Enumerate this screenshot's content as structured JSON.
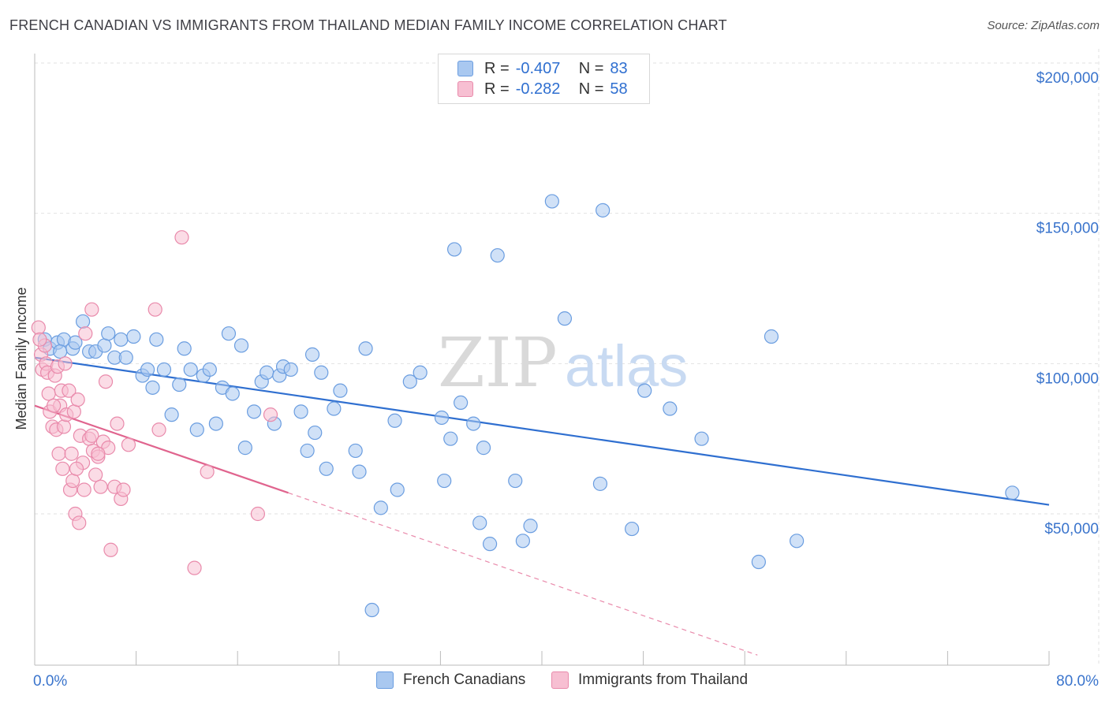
{
  "title": "FRENCH CANADIAN VS IMMIGRANTS FROM THAILAND MEDIAN FAMILY INCOME CORRELATION CHART",
  "source": "Source: ZipAtlas.com",
  "watermark": {
    "zip": "ZIP",
    "atlas": "atlas"
  },
  "legend": {
    "rows": [
      {
        "r_label": "R =",
        "r_value": "-0.407",
        "n_label": "N =",
        "n_value": "83",
        "color": "#a9c8f0",
        "stroke": "#6a9de0"
      },
      {
        "r_label": "R =",
        "r_value": "-0.282",
        "n_label": "N =",
        "n_value": "58",
        "color": "#f7bfd2",
        "stroke": "#e98aab"
      }
    ]
  },
  "bottom_legend": {
    "series1": "French Canadians",
    "series2": "Immigrants from Thailand"
  },
  "chart_data": {
    "type": "scatter",
    "title": "FRENCH CANADIAN VS IMMIGRANTS FROM THAILAND MEDIAN FAMILY INCOME CORRELATION CHART",
    "xlabel": "",
    "ylabel": "Median Family Income",
    "xlim": [
      0,
      80
    ],
    "ylim": [
      0,
      210000
    ],
    "x_tick_labels": [
      "0.0%",
      "80.0%"
    ],
    "y_ticks": [
      50000,
      100000,
      150000,
      200000
    ],
    "y_tick_labels": [
      "$50,000",
      "$100,000",
      "$150,000",
      "$200,000"
    ],
    "grid": true,
    "legend_position": "top-center",
    "series": [
      {
        "name": "French Canadians",
        "color": "#6a9de0",
        "fill": "#a9c8f0",
        "trend": {
          "x": [
            0,
            80
          ],
          "y": [
            102000,
            53000
          ],
          "style": "solid"
        },
        "points": [
          [
            0.8,
            108000
          ],
          [
            1.2,
            105000
          ],
          [
            1.8,
            107000
          ],
          [
            2.3,
            108000
          ],
          [
            3.0,
            105000
          ],
          [
            3.2,
            107000
          ],
          [
            3.8,
            114000
          ],
          [
            4.3,
            104000
          ],
          [
            4.8,
            104000
          ],
          [
            5.5,
            106000
          ],
          [
            5.8,
            110000
          ],
          [
            6.3,
            102000
          ],
          [
            6.8,
            108000
          ],
          [
            7.2,
            102000
          ],
          [
            7.8,
            109000
          ],
          [
            8.5,
            96000
          ],
          [
            8.9,
            98000
          ],
          [
            9.3,
            92000
          ],
          [
            9.6,
            108000
          ],
          [
            10.2,
            98000
          ],
          [
            10.8,
            83000
          ],
          [
            11.4,
            93000
          ],
          [
            11.8,
            105000
          ],
          [
            12.3,
            98000
          ],
          [
            12.8,
            78000
          ],
          [
            13.3,
            96000
          ],
          [
            13.8,
            98000
          ],
          [
            14.3,
            80000
          ],
          [
            14.8,
            92000
          ],
          [
            15.3,
            110000
          ],
          [
            15.6,
            90000
          ],
          [
            16.3,
            106000
          ],
          [
            16.6,
            72000
          ],
          [
            17.3,
            84000
          ],
          [
            17.9,
            94000
          ],
          [
            18.3,
            97000
          ],
          [
            18.9,
            80000
          ],
          [
            19.3,
            96000
          ],
          [
            19.6,
            99000
          ],
          [
            20.2,
            98000
          ],
          [
            21.0,
            84000
          ],
          [
            21.5,
            71000
          ],
          [
            21.9,
            103000
          ],
          [
            22.1,
            77000
          ],
          [
            22.6,
            97000
          ],
          [
            23.0,
            65000
          ],
          [
            23.6,
            85000
          ],
          [
            24.1,
            91000
          ],
          [
            25.3,
            71000
          ],
          [
            25.6,
            64000
          ],
          [
            26.1,
            105000
          ],
          [
            27.3,
            52000
          ],
          [
            28.4,
            81000
          ],
          [
            28.6,
            58000
          ],
          [
            29.6,
            94000
          ],
          [
            30.4,
            97000
          ],
          [
            32.1,
            82000
          ],
          [
            32.3,
            61000
          ],
          [
            32.8,
            75000
          ],
          [
            33.1,
            138000
          ],
          [
            33.6,
            87000
          ],
          [
            34.6,
            80000
          ],
          [
            35.1,
            47000
          ],
          [
            35.4,
            72000
          ],
          [
            35.9,
            40000
          ],
          [
            36.5,
            136000
          ],
          [
            37.9,
            61000
          ],
          [
            38.5,
            41000
          ],
          [
            39.1,
            46000
          ],
          [
            40.8,
            154000
          ],
          [
            41.8,
            115000
          ],
          [
            44.6,
            60000
          ],
          [
            44.8,
            151000
          ],
          [
            47.1,
            45000
          ],
          [
            48.1,
            91000
          ],
          [
            50.1,
            85000
          ],
          [
            52.6,
            75000
          ],
          [
            57.1,
            34000
          ],
          [
            58.1,
            109000
          ],
          [
            60.1,
            41000
          ],
          [
            26.6,
            18000
          ],
          [
            77.1,
            57000
          ],
          [
            2.0,
            104000
          ]
        ]
      },
      {
        "name": "Immigrants from Thailand",
        "color": "#e98aab",
        "fill": "#f7bfd2",
        "trend": {
          "x": [
            0,
            20
          ],
          "y": [
            86000,
            57000
          ],
          "style": "solid",
          "extension": {
            "x": [
              20,
              57
            ],
            "y": [
              57000,
              3000
            ],
            "style": "dashed"
          }
        },
        "points": [
          [
            0.3,
            112000
          ],
          [
            0.5,
            103000
          ],
          [
            0.6,
            98000
          ],
          [
            0.8,
            106000
          ],
          [
            0.9,
            100000
          ],
          [
            1.0,
            97000
          ],
          [
            1.1,
            90000
          ],
          [
            1.2,
            84000
          ],
          [
            1.4,
            79000
          ],
          [
            1.6,
            96000
          ],
          [
            1.7,
            78000
          ],
          [
            1.8,
            99000
          ],
          [
            1.9,
            70000
          ],
          [
            2.0,
            86000
          ],
          [
            2.1,
            91000
          ],
          [
            2.2,
            65000
          ],
          [
            2.3,
            79000
          ],
          [
            2.4,
            100000
          ],
          [
            2.5,
            83000
          ],
          [
            2.7,
            91000
          ],
          [
            2.8,
            58000
          ],
          [
            3.0,
            61000
          ],
          [
            3.1,
            84000
          ],
          [
            3.2,
            50000
          ],
          [
            3.4,
            88000
          ],
          [
            3.5,
            47000
          ],
          [
            3.6,
            76000
          ],
          [
            3.8,
            67000
          ],
          [
            3.9,
            58000
          ],
          [
            4.0,
            110000
          ],
          [
            4.3,
            75000
          ],
          [
            4.5,
            76000
          ],
          [
            4.6,
            71000
          ],
          [
            4.8,
            63000
          ],
          [
            5.0,
            69000
          ],
          [
            5.2,
            59000
          ],
          [
            5.4,
            74000
          ],
          [
            5.6,
            94000
          ],
          [
            5.8,
            72000
          ],
          [
            6.0,
            38000
          ],
          [
            6.3,
            59000
          ],
          [
            6.5,
            80000
          ],
          [
            6.8,
            55000
          ],
          [
            7.0,
            58000
          ],
          [
            7.4,
            73000
          ],
          [
            9.5,
            118000
          ],
          [
            9.8,
            78000
          ],
          [
            11.6,
            142000
          ],
          [
            12.6,
            32000
          ],
          [
            13.6,
            64000
          ],
          [
            17.6,
            50000
          ],
          [
            18.6,
            83000
          ],
          [
            4.5,
            118000
          ],
          [
            1.5,
            86000
          ],
          [
            2.9,
            70000
          ],
          [
            0.4,
            108000
          ],
          [
            3.3,
            65000
          ],
          [
            5.0,
            70000
          ]
        ]
      }
    ]
  }
}
